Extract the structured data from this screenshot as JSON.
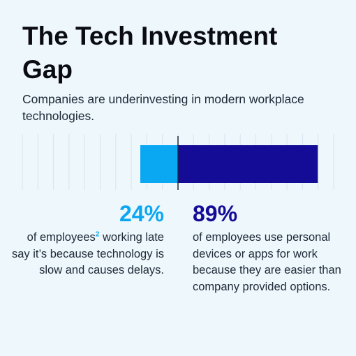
{
  "title": "The Tech Investment Gap",
  "subtitle": "Companies are underinvesting in modern workplace technologies.",
  "colors": {
    "left": "#0aa7f2",
    "right": "#140c96",
    "divider": "#1f2937",
    "grid": "#d8e4ee"
  },
  "left_stat": {
    "percent": "24%",
    "desc_before": "of employees",
    "footnote": "2",
    "desc_after": " working late say it’s because technology is slow and causes delays."
  },
  "right_stat": {
    "percent": "89%",
    "desc": "of employees use personal devices or apps for work because they are easier than company provided options."
  },
  "chart_data": {
    "type": "bar",
    "orientation": "horizontal-diverging",
    "categories": [
      "working late due to slow technology",
      "use personal devices or apps"
    ],
    "values": [
      24,
      89
    ],
    "unit": "%",
    "grid": true
  }
}
